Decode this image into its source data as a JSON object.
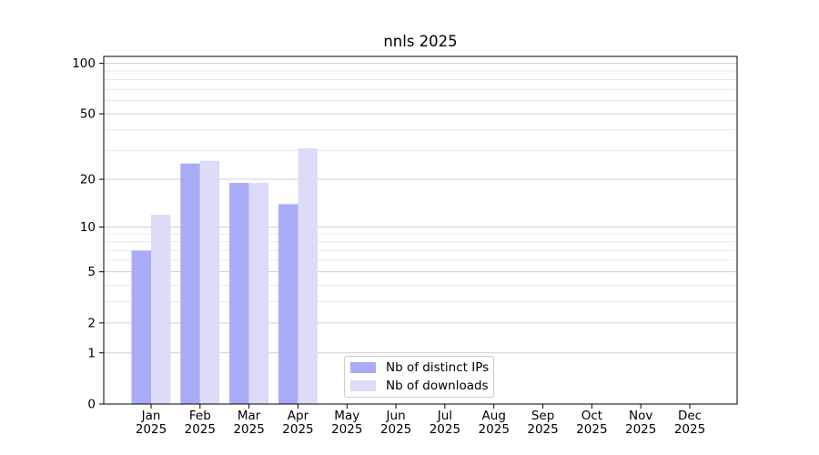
{
  "chart_data": {
    "type": "bar",
    "title": "nnls 2025",
    "categories": [
      "Jan",
      "Feb",
      "Mar",
      "Apr",
      "May",
      "Jun",
      "Jul",
      "Aug",
      "Sep",
      "Oct",
      "Nov",
      "Dec"
    ],
    "category_year": "2025",
    "series": [
      {
        "name": "Nb of distinct IPs",
        "color": "#aaabf7",
        "values": [
          7,
          25,
          19,
          14,
          0,
          0,
          0,
          0,
          0,
          0,
          0,
          0
        ]
      },
      {
        "name": "Nb of downloads",
        "color": "#dcdcf8",
        "values": [
          12,
          26,
          19,
          31,
          0,
          0,
          0,
          0,
          0,
          0,
          0,
          0
        ]
      }
    ],
    "yscale": "log1p",
    "ylim": [
      0,
      110
    ],
    "yticks": [
      0,
      1,
      2,
      5,
      10,
      20,
      50,
      100
    ],
    "yticks_minor": [
      3,
      4,
      6,
      7,
      8,
      9,
      30,
      40,
      60,
      70,
      80,
      90
    ],
    "grid": "horizontal",
    "legend_position": "lower center",
    "colors": {
      "major_grid": "#cfcfcf",
      "minor_grid": "#e9e9e9",
      "spine": "#000000"
    }
  }
}
